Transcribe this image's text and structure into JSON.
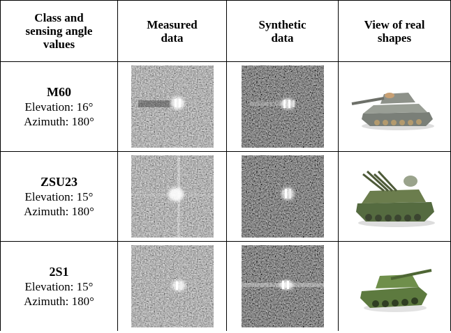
{
  "table": {
    "header": [
      [
        "Class and",
        "sensing angle",
        "values"
      ],
      [
        "Measured",
        "data"
      ],
      [
        "Synthetic",
        "data"
      ],
      [
        "View of real",
        "shapes"
      ]
    ],
    "rows": [
      [
        "M60",
        "Elevation: 16°",
        "Azimuth: 180°"
      ],
      [
        "ZSU23",
        "Elevation: 15°",
        "Azimuth: 180°"
      ],
      [
        "2S1",
        "Elevation: 15°",
        "Azimuth: 180°"
      ]
    ]
  }
}
